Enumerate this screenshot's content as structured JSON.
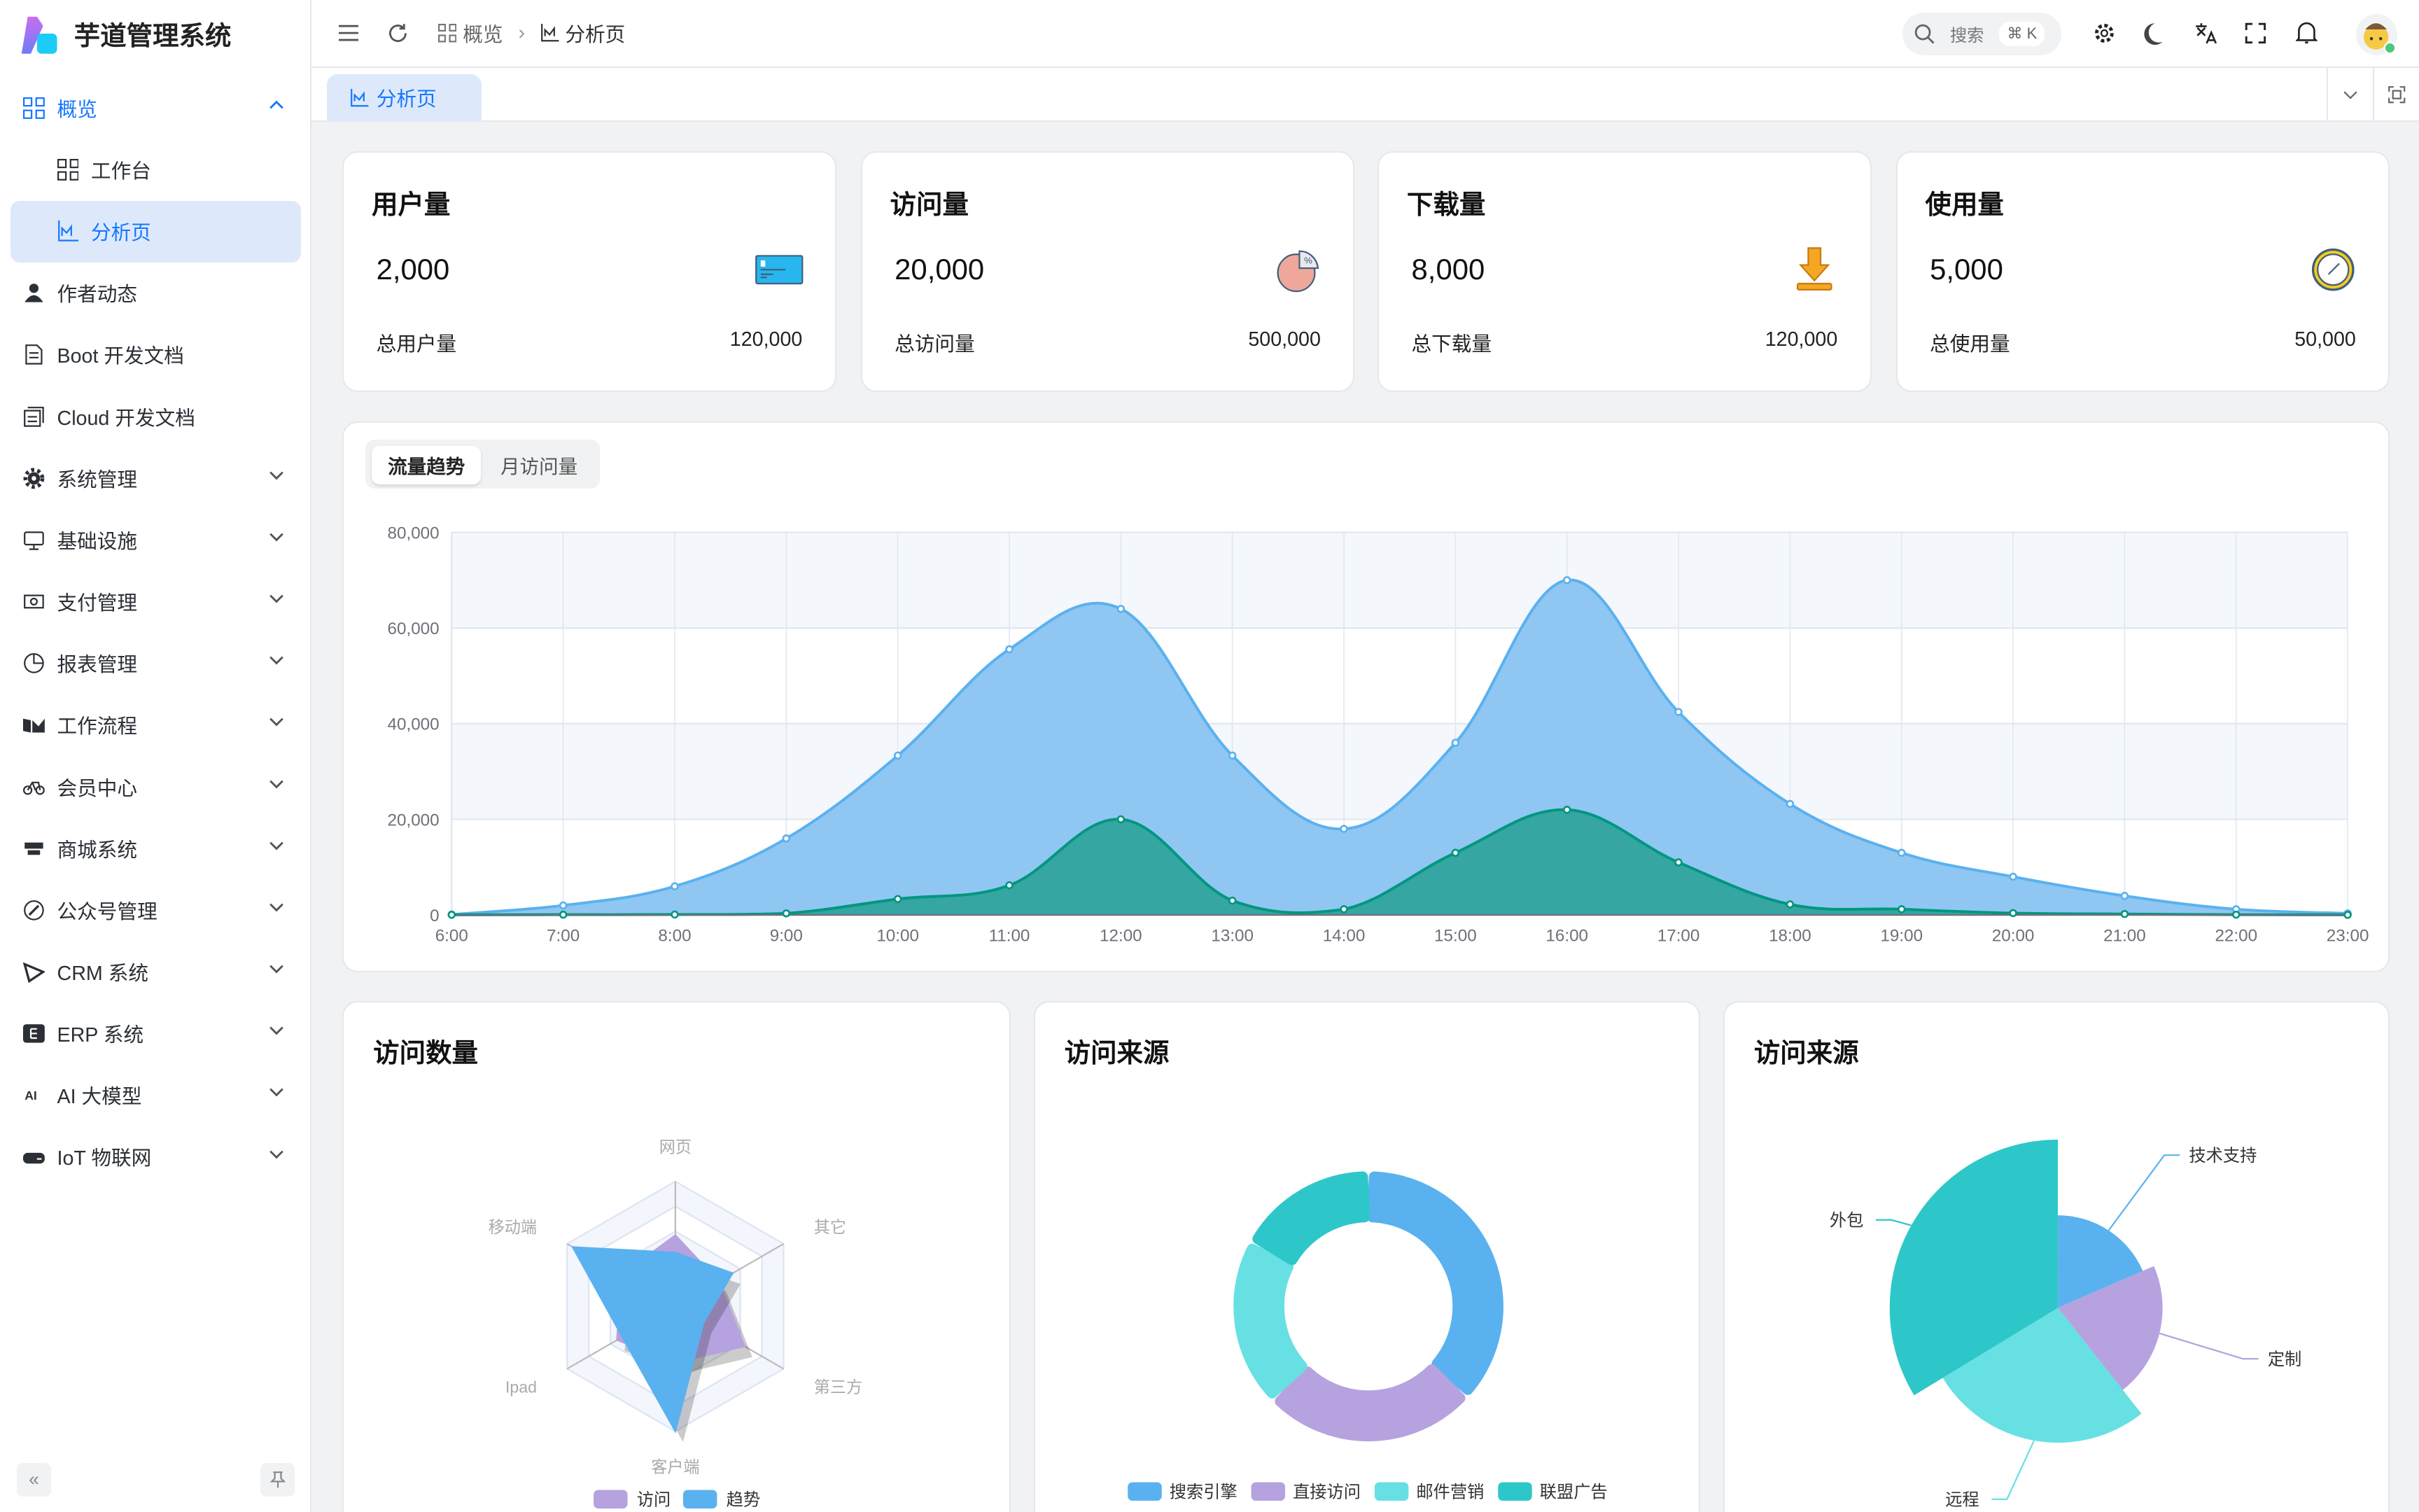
{
  "app": {
    "title": "芋道管理系统"
  },
  "sidebar": {
    "items": [
      {
        "label": "概览",
        "icon": "dashboard-icon",
        "level": 0,
        "state": "expanded-active"
      },
      {
        "label": "工作台",
        "icon": "workbench-icon",
        "level": 1,
        "state": ""
      },
      {
        "label": "分析页",
        "icon": "analysis-chart-icon",
        "level": 1,
        "state": "selected"
      },
      {
        "label": "作者动态",
        "icon": "user-icon",
        "level": 0,
        "state": ""
      },
      {
        "label": "Boot 开发文档",
        "icon": "document-icon",
        "level": 0,
        "state": ""
      },
      {
        "label": "Cloud 开发文档",
        "icon": "documents-icon",
        "level": 0,
        "state": ""
      },
      {
        "label": "系统管理",
        "icon": "gear-icon",
        "level": 0,
        "state": "collapsed"
      },
      {
        "label": "基础设施",
        "icon": "monitor-icon",
        "level": 0,
        "state": "collapsed"
      },
      {
        "label": "支付管理",
        "icon": "payment-icon",
        "level": 0,
        "state": "collapsed"
      },
      {
        "label": "报表管理",
        "icon": "pie-chart-icon",
        "level": 0,
        "state": "collapsed"
      },
      {
        "label": "工作流程",
        "icon": "workflow-icon",
        "level": 0,
        "state": "collapsed"
      },
      {
        "label": "会员中心",
        "icon": "bicycle-icon",
        "level": 0,
        "state": "collapsed"
      },
      {
        "label": "商城系统",
        "icon": "shop-icon",
        "level": 0,
        "state": "collapsed"
      },
      {
        "label": "公众号管理",
        "icon": "compass-icon",
        "level": 0,
        "state": "collapsed"
      },
      {
        "label": "CRM 系统",
        "icon": "crm-icon",
        "level": 0,
        "state": "collapsed"
      },
      {
        "label": "ERP 系统",
        "icon": "erp-icon",
        "level": 0,
        "state": "collapsed"
      },
      {
        "label": "AI 大模型",
        "icon": "ai-icon",
        "level": 0,
        "state": "collapsed"
      },
      {
        "label": "IoT 物联网",
        "icon": "iot-icon",
        "level": 0,
        "state": "collapsed"
      }
    ]
  },
  "header": {
    "breadcrumb": [
      {
        "label": "概览",
        "icon": "dashboard-icon"
      },
      {
        "label": "分析页",
        "icon": "analysis-chart-icon"
      }
    ],
    "search": {
      "placeholder": "搜索",
      "shortcut": "⌘ K"
    }
  },
  "tabs": [
    {
      "label": "分析页",
      "icon": "analysis-chart-icon",
      "active": true
    }
  ],
  "stats": [
    {
      "title": "用户量",
      "value": "2,000",
      "footer_label": "总用户量",
      "footer_value": "120,000",
      "icon": "credit-card-icon"
    },
    {
      "title": "访问量",
      "value": "20,000",
      "footer_label": "总访问量",
      "footer_value": "500,000",
      "icon": "pie-percent-icon"
    },
    {
      "title": "下载量",
      "value": "8,000",
      "footer_label": "总下载量",
      "footer_value": "120,000",
      "icon": "download-icon"
    },
    {
      "title": "使用量",
      "value": "5,000",
      "footer_label": "总使用量",
      "footer_value": "50,000",
      "icon": "clock-icon"
    }
  ],
  "traffic": {
    "tabs": [
      "流量趋势",
      "月访问量"
    ],
    "active": 0
  },
  "panels": {
    "radar_title": "访问数量",
    "donut_title": "访问来源",
    "rose_title": "访问来源"
  },
  "colors": {
    "accent": "#1677ff",
    "blue": "#5ab1ef",
    "purple": "#b6a2de",
    "cyan": "#67e0e3",
    "teal": "#2ec7c9",
    "green": "#019680"
  },
  "chart_data": [
    {
      "type": "area",
      "x": [
        "6:00",
        "7:00",
        "8:00",
        "9:00",
        "10:00",
        "11:00",
        "12:00",
        "13:00",
        "14:00",
        "15:00",
        "16:00",
        "17:00",
        "18:00",
        "19:00",
        "20:00",
        "21:00",
        "22:00",
        "23:00"
      ],
      "series": [
        {
          "values": [
            111,
            2000,
            6000,
            16000,
            33333,
            55555,
            64000,
            33333,
            18000,
            36000,
            70000,
            42444,
            23222,
            13000,
            8000,
            4000,
            1200,
            333
          ],
          "color": "#5ab1ef"
        },
        {
          "values": [
            33,
            66,
            88,
            333,
            3333,
            6200,
            20000,
            3000,
            1200,
            13000,
            22000,
            11000,
            2221,
            1201,
            390,
            198,
            60,
            30
          ],
          "color": "#019680"
        }
      ],
      "ylim": [
        0,
        80000
      ],
      "yticks": [
        "0",
        "20,000",
        "40,000",
        "60,000",
        "80,000"
      ],
      "smooth": true,
      "grid": true,
      "split_area": true
    },
    {
      "type": "radar",
      "indicators": [
        "网页",
        "其它",
        "第三方",
        "客户端",
        "Ipad",
        "移动端"
      ],
      "max": 100,
      "series": [
        {
          "name": "访问",
          "values": [
            57,
            40,
            64,
            45,
            54,
            50
          ],
          "color": "#b6a2de"
        },
        {
          "name": "趋势",
          "values": [
            43,
            53,
            26,
            100,
            49,
            95
          ],
          "color": "#5ab1ef"
        }
      ],
      "legend": "bottom"
    },
    {
      "type": "pie",
      "variant": "doughnut",
      "slices": [
        {
          "name": "搜索引擎",
          "value": 1048,
          "color": "#5ab1ef"
        },
        {
          "name": "直接访问",
          "value": 735,
          "color": "#b6a2de"
        },
        {
          "name": "邮件营销",
          "value": 580,
          "color": "#67e0e3"
        },
        {
          "name": "联盟广告",
          "value": 484,
          "color": "#2ec7c9"
        }
      ],
      "legend": "bottom"
    },
    {
      "type": "pie",
      "variant": "rose-radius",
      "slices": [
        {
          "name": "技术支持",
          "value": 274,
          "color": "#5ab1ef"
        },
        {
          "name": "定制",
          "value": 310,
          "color": "#b6a2de"
        },
        {
          "name": "远程",
          "value": 400,
          "color": "#67e0e3"
        },
        {
          "name": "外包",
          "value": 500,
          "color": "#2ec7c9"
        }
      ]
    }
  ]
}
